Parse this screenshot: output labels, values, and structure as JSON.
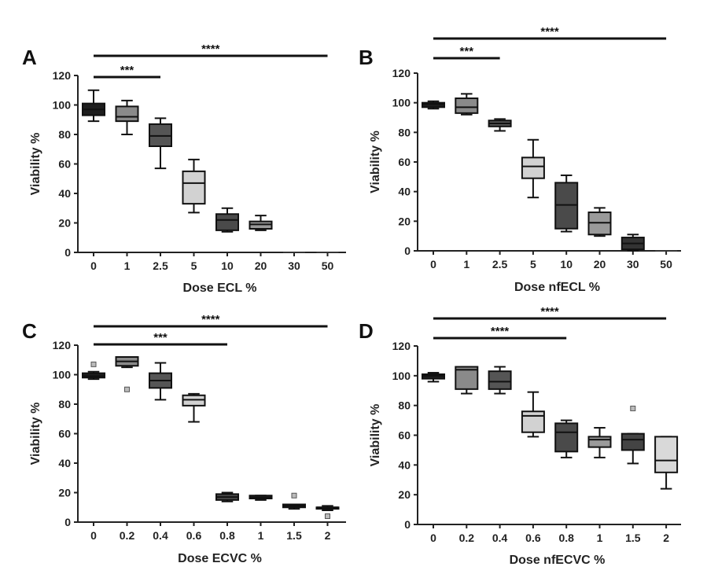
{
  "chart_data": [
    {
      "panel": "A",
      "type": "box",
      "xlabel": "Dose ECL %",
      "ylabel": "Viability %",
      "ylim": [
        0,
        120
      ],
      "yticks": [
        0,
        20,
        40,
        60,
        80,
        100,
        120
      ],
      "categories": [
        "0",
        "1",
        "2.5",
        "5",
        "10",
        "20",
        "30",
        "50"
      ],
      "boxes": [
        {
          "min": 89,
          "q1": 93,
          "median": 97,
          "q3": 101,
          "max": 110,
          "fill": "#1e1e1e"
        },
        {
          "min": 80,
          "q1": 89,
          "median": 92,
          "q3": 99,
          "max": 103,
          "fill": "#8a8a8a"
        },
        {
          "min": 57,
          "q1": 72,
          "median": 79,
          "q3": 87,
          "max": 91,
          "fill": "#555555"
        },
        {
          "min": 27,
          "q1": 33,
          "median": 47,
          "q3": 55,
          "max": 63,
          "fill": "#d2d2d2"
        },
        {
          "min": 14,
          "q1": 15,
          "median": 22,
          "q3": 26,
          "max": 30,
          "fill": "#4a4a4a"
        },
        {
          "min": 15,
          "q1": 16,
          "median": 19,
          "q3": 21,
          "max": 25,
          "fill": "#9a9a9a"
        },
        {
          "min": 0,
          "q1": 0,
          "median": 0,
          "q3": 0,
          "max": 0,
          "fill": "#333333"
        },
        {
          "min": 0,
          "q1": 0,
          "median": 0,
          "q3": 0,
          "max": 0,
          "fill": "#333333"
        }
      ],
      "outliers": [],
      "significance": [
        {
          "from": 0,
          "to": 2,
          "label": "***",
          "level": 1
        },
        {
          "from": 0,
          "to": 7,
          "label": "****",
          "level": 2
        }
      ]
    },
    {
      "panel": "B",
      "type": "box",
      "xlabel": "Dose nfECL %",
      "ylabel": "Viability %",
      "ylim": [
        0,
        120
      ],
      "yticks": [
        0,
        20,
        40,
        60,
        80,
        100,
        120
      ],
      "categories": [
        "0",
        "1",
        "2.5",
        "5",
        "10",
        "20",
        "30",
        "50"
      ],
      "boxes": [
        {
          "min": 96,
          "q1": 97,
          "median": 99,
          "q3": 100,
          "max": 101,
          "fill": "#1e1e1e"
        },
        {
          "min": 92,
          "q1": 93,
          "median": 97,
          "q3": 103,
          "max": 106,
          "fill": "#8a8a8a"
        },
        {
          "min": 81,
          "q1": 84,
          "median": 86,
          "q3": 88,
          "max": 89,
          "fill": "#555555"
        },
        {
          "min": 36,
          "q1": 49,
          "median": 57,
          "q3": 63,
          "max": 75,
          "fill": "#d2d2d2"
        },
        {
          "min": 13,
          "q1": 15,
          "median": 31,
          "q3": 46,
          "max": 51,
          "fill": "#4a4a4a"
        },
        {
          "min": 10,
          "q1": 11,
          "median": 19,
          "q3": 26,
          "max": 29,
          "fill": "#9a9a9a"
        },
        {
          "min": 0,
          "q1": 1,
          "median": 5,
          "q3": 9,
          "max": 11,
          "fill": "#333333"
        },
        {
          "min": 0,
          "q1": 0,
          "median": 0,
          "q3": 0,
          "max": 0,
          "fill": "#333333"
        }
      ],
      "outliers": [],
      "significance": [
        {
          "from": 0,
          "to": 2,
          "label": "***",
          "level": 1
        },
        {
          "from": 0,
          "to": 7,
          "label": "****",
          "level": 2
        }
      ]
    },
    {
      "panel": "C",
      "type": "box",
      "xlabel": "Dose ECVC %",
      "ylabel": "Viability %",
      "ylim": [
        0,
        120
      ],
      "yticks": [
        0,
        20,
        40,
        60,
        80,
        100,
        120
      ],
      "categories": [
        "0",
        "0.2",
        "0.4",
        "0.6",
        "0.8",
        "1",
        "1.5",
        "2"
      ],
      "boxes": [
        {
          "min": 97,
          "q1": 98,
          "median": 99,
          "q3": 101,
          "max": 102,
          "fill": "#1e1e1e"
        },
        {
          "min": 105,
          "q1": 106,
          "median": 109,
          "q3": 112,
          "max": 112,
          "fill": "#8a8a8a"
        },
        {
          "min": 83,
          "q1": 91,
          "median": 96,
          "q3": 101,
          "max": 108,
          "fill": "#555555"
        },
        {
          "min": 68,
          "q1": 79,
          "median": 83,
          "q3": 86,
          "max": 87,
          "fill": "#d2d2d2"
        },
        {
          "min": 14,
          "q1": 15,
          "median": 17,
          "q3": 19,
          "max": 20,
          "fill": "#4a4a4a"
        },
        {
          "min": 15,
          "q1": 16,
          "median": 17,
          "q3": 18,
          "max": 18,
          "fill": "#9a9a9a"
        },
        {
          "min": 9,
          "q1": 10,
          "median": 11,
          "q3": 12,
          "max": 12,
          "fill": "#333333"
        },
        {
          "min": 8,
          "q1": 9,
          "median": 10,
          "q3": 10,
          "max": 11,
          "fill": "#444444"
        }
      ],
      "outliers": [
        {
          "category": 0,
          "y": 107
        },
        {
          "category": 1,
          "y": 90
        },
        {
          "category": 6,
          "y": 18
        },
        {
          "category": 7,
          "y": 4
        }
      ],
      "significance": [
        {
          "from": 0,
          "to": 4,
          "label": "***",
          "level": 1
        },
        {
          "from": 0,
          "to": 7,
          "label": "****",
          "level": 2
        }
      ]
    },
    {
      "panel": "D",
      "type": "box",
      "xlabel": "Dose nfECVC %",
      "ylabel": "Viability %",
      "ylim": [
        0,
        120
      ],
      "yticks": [
        0,
        20,
        40,
        60,
        80,
        100,
        120
      ],
      "categories": [
        "0",
        "0.2",
        "0.4",
        "0.6",
        "0.8",
        "1",
        "1.5",
        "2"
      ],
      "boxes": [
        {
          "min": 96,
          "q1": 98,
          "median": 100,
          "q3": 101,
          "max": 102,
          "fill": "#1e1e1e"
        },
        {
          "min": 88,
          "q1": 91,
          "median": 104,
          "q3": 106,
          "max": 106,
          "fill": "#8a8a8a"
        },
        {
          "min": 88,
          "q1": 91,
          "median": 96,
          "q3": 103,
          "max": 106,
          "fill": "#555555"
        },
        {
          "min": 59,
          "q1": 62,
          "median": 73,
          "q3": 76,
          "max": 89,
          "fill": "#d2d2d2"
        },
        {
          "min": 45,
          "q1": 49,
          "median": 62,
          "q3": 68,
          "max": 70,
          "fill": "#4a4a4a"
        },
        {
          "min": 45,
          "q1": 52,
          "median": 57,
          "q3": 59,
          "max": 65,
          "fill": "#9a9a9a"
        },
        {
          "min": 41,
          "q1": 50,
          "median": 57,
          "q3": 61,
          "max": 61,
          "fill": "#444444"
        },
        {
          "min": 24,
          "q1": 35,
          "median": 43,
          "q3": 59,
          "max": 59,
          "fill": "#d9d9d9"
        }
      ],
      "outliers": [
        {
          "category": 6,
          "y": 78
        }
      ],
      "significance": [
        {
          "from": 0,
          "to": 4,
          "label": "****",
          "level": 1
        },
        {
          "from": 0,
          "to": 7,
          "label": "****",
          "level": 2
        }
      ]
    }
  ]
}
